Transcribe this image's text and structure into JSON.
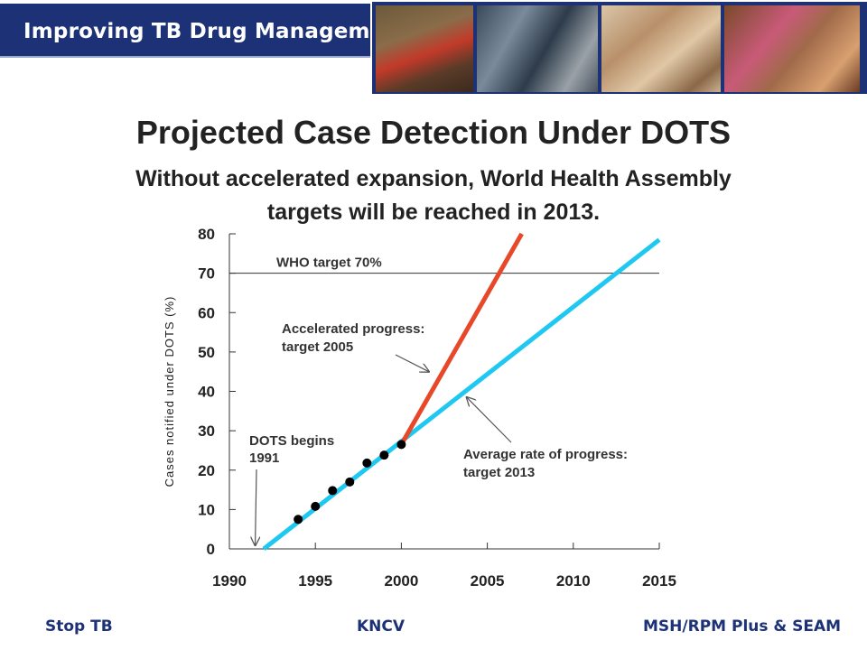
{
  "header": {
    "title": "Improving TB Drug Management"
  },
  "slide": {
    "title": "Projected Case Detection Under DOTS",
    "subtitle_line1": "Without accelerated expansion, World Health Assembly",
    "subtitle_line2": "targets will be reached in 2013."
  },
  "chart_data": {
    "type": "line",
    "ylabel": "Cases notified under DOTS (%)",
    "xlim": [
      1990,
      2015
    ],
    "ylim": [
      0,
      80
    ],
    "x_ticks": [
      1990,
      1995,
      2000,
      2005,
      2010,
      2015
    ],
    "y_ticks": [
      0,
      10,
      20,
      30,
      40,
      50,
      60,
      70,
      80
    ],
    "target_line": {
      "label": "WHO target 70%",
      "value": 70
    },
    "observed_points": [
      {
        "x": 1994,
        "y": 7.5
      },
      {
        "x": 1995,
        "y": 10.8
      },
      {
        "x": 1996,
        "y": 14.8
      },
      {
        "x": 1997,
        "y": 17
      },
      {
        "x": 1998,
        "y": 21.8
      },
      {
        "x": 1999,
        "y": 23.8
      },
      {
        "x": 2000,
        "y": 26.5
      }
    ],
    "series": [
      {
        "points": [
          {
            "x": 1992,
            "y": 0
          },
          {
            "x": 2015,
            "y": 78.5
          }
        ],
        "color": "#1ec8f0"
      },
      {
        "points": [
          {
            "x": 2000,
            "y": 26.5
          },
          {
            "x": 2007,
            "y": 80
          }
        ],
        "color": "#e8482a"
      }
    ],
    "annotations": {
      "dots_begins": {
        "line1": "DOTS begins",
        "line2": "1991",
        "arrow_x": 1991.5,
        "arrow_y": 0
      },
      "accelerated": {
        "line1": "Accelerated progress:",
        "line2": "target 2005",
        "arrow_x": 2001.6,
        "arrow_y": 45
      },
      "average": {
        "line1": "Average rate of progress:",
        "line2": "target 2013",
        "arrow_x": 2003.8,
        "arrow_y": 38.5
      }
    }
  },
  "footer": {
    "left": "Stop TB",
    "center": "KNCV",
    "right": "MSH/RPM Plus & SEAM"
  }
}
